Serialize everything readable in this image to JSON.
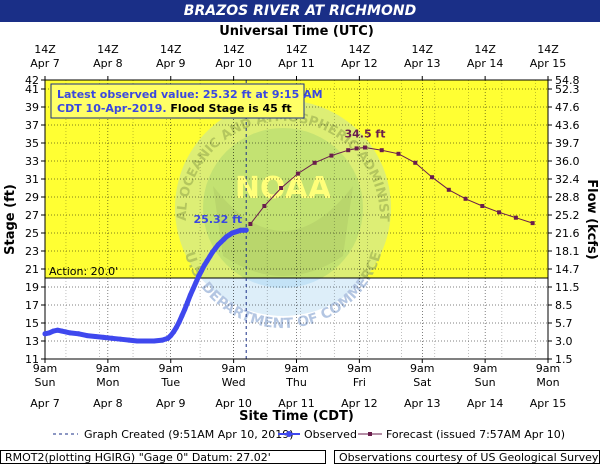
{
  "header": {
    "title": "BRAZOS RIVER AT RICHMOND"
  },
  "footer": {
    "left": "RMOT2(plotting HGIRG) \"Gage 0\" Datum: 27.02'",
    "right": "Observations courtesy of US Geological Survey"
  },
  "colors": {
    "title_bar": "#1a2f87",
    "yellow_zone": "#ffff33",
    "observed": "#3f48ee",
    "forecast": "#6a1d4c",
    "label_blue": "#3a48e0"
  },
  "chart_data": {
    "type": "line",
    "top_axis_title": "Universal Time (UTC)",
    "top_ticks": [
      {
        "line1": "14Z",
        "line2": "Apr 7"
      },
      {
        "line1": "14Z",
        "line2": "Apr 8"
      },
      {
        "line1": "14Z",
        "line2": "Apr 9"
      },
      {
        "line1": "14Z",
        "line2": "Apr 10"
      },
      {
        "line1": "14Z",
        "line2": "Apr 11"
      },
      {
        "line1": "14Z",
        "line2": "Apr 12"
      },
      {
        "line1": "14Z",
        "line2": "Apr 13"
      },
      {
        "line1": "14Z",
        "line2": "Apr 14"
      },
      {
        "line1": "14Z",
        "line2": "Apr 15"
      }
    ],
    "bottom_axis_title": "Site Time (CDT)",
    "bottom_ticks": [
      {
        "time": "9am",
        "day": "Sun",
        "date": "Apr 7"
      },
      {
        "time": "9am",
        "day": "Mon",
        "date": "Apr 8"
      },
      {
        "time": "9am",
        "day": "Tue",
        "date": "Apr 9"
      },
      {
        "time": "9am",
        "day": "Wed",
        "date": "Apr 10"
      },
      {
        "time": "9am",
        "day": "Thu",
        "date": "Apr 11"
      },
      {
        "time": "9am",
        "day": "Fri",
        "date": "Apr 12"
      },
      {
        "time": "9am",
        "day": "Sat",
        "date": "Apr 13"
      },
      {
        "time": "9am",
        "day": "Sun",
        "date": "Apr 14"
      },
      {
        "time": "9am",
        "day": "Mon",
        "date": "Apr 15"
      }
    ],
    "ylabel_left": "Stage (ft)",
    "ylabel_right": "Flow (kcfs)",
    "ylim": [
      11,
      42
    ],
    "yticks_left": [
      11,
      13,
      15,
      17,
      19,
      21,
      23,
      25,
      27,
      29,
      31,
      33,
      35,
      37,
      39,
      41,
      42
    ],
    "yticks_right": [
      {
        "stage": 11,
        "label": "1.5"
      },
      {
        "stage": 13,
        "label": "3.0"
      },
      {
        "stage": 15,
        "label": "5.7"
      },
      {
        "stage": 17,
        "label": "8.5"
      },
      {
        "stage": 19,
        "label": "11.5"
      },
      {
        "stage": 21,
        "label": "14.7"
      },
      {
        "stage": 23,
        "label": "18.1"
      },
      {
        "stage": 25,
        "label": "21.6"
      },
      {
        "stage": 27,
        "label": "25.2"
      },
      {
        "stage": 29,
        "label": "28.8"
      },
      {
        "stage": 31,
        "label": "32.4"
      },
      {
        "stage": 33,
        "label": "36.0"
      },
      {
        "stage": 35,
        "label": "39.7"
      },
      {
        "stage": 37,
        "label": "43.6"
      },
      {
        "stage": 39,
        "label": "47.6"
      },
      {
        "stage": 41,
        "label": "52.3"
      },
      {
        "stage": 42,
        "label": "54.8"
      }
    ],
    "action_stage": 20,
    "action_label": "Action: 20.0'",
    "flood_stage": 45,
    "info_box": {
      "line1": "Latest observed value: 25.32 ft at 9:15 AM",
      "line2_blue": "CDT 10-Apr-2019.",
      "line2_black": "Flood Stage is 45 ft"
    },
    "latest_label": "25.32 ft",
    "crest_label": "34.5 ft",
    "observed": {
      "name": "Observed",
      "x_hours": [
        0,
        3,
        6,
        9,
        12,
        18,
        24,
        30,
        36,
        42,
        48,
        54,
        60,
        66,
        72,
        78,
        84,
        88,
        90,
        92,
        94,
        96,
        98,
        100,
        102,
        104,
        106,
        108,
        110,
        112,
        114,
        116,
        118,
        120,
        122,
        124,
        126,
        128,
        130,
        132,
        134,
        136,
        138,
        140,
        142,
        144
      ],
      "values": [
        13.8,
        13.9,
        14.1,
        14.2,
        14.1,
        13.9,
        13.8,
        13.6,
        13.5,
        13.4,
        13.3,
        13.2,
        13.1,
        13.0,
        13.0,
        13.0,
        13.1,
        13.3,
        13.6,
        14.0,
        14.5,
        15.1,
        15.8,
        16.5,
        17.3,
        18.1,
        18.8,
        19.5,
        20.2,
        20.8,
        21.4,
        21.9,
        22.4,
        22.9,
        23.3,
        23.7,
        24.0,
        24.3,
        24.6,
        24.8,
        25.0,
        25.1,
        25.2,
        25.3,
        25.3,
        25.32
      ]
    },
    "forecast": {
      "name": "Forecast (issued 7:57AM Apr 10)",
      "x_hours": [
        147,
        157,
        169,
        181,
        193,
        205,
        217,
        223,
        229,
        241,
        253,
        265,
        277,
        289,
        301,
        313,
        325,
        337,
        349
      ],
      "values": [
        26.0,
        28.0,
        30.0,
        31.6,
        32.8,
        33.6,
        34.2,
        34.4,
        34.5,
        34.2,
        33.8,
        32.8,
        31.2,
        29.8,
        28.8,
        28.0,
        27.3,
        26.7,
        26.1
      ]
    },
    "now_hour": 144,
    "x_range_hours": [
      0,
      360
    ],
    "legend": {
      "created": "Graph Created (9:51AM Apr 10, 2019)",
      "observed": "Observed",
      "forecast": "Forecast (issued 7:57AM Apr 10)"
    },
    "grid": true,
    "watermark": {
      "arc_top": "NATIONAL OCEANIC AND ATMOSPHERIC ADMINISTRATION",
      "arc_bottom": "U.S. DEPARTMENT OF COMMERCE",
      "center": "NOAA"
    }
  }
}
